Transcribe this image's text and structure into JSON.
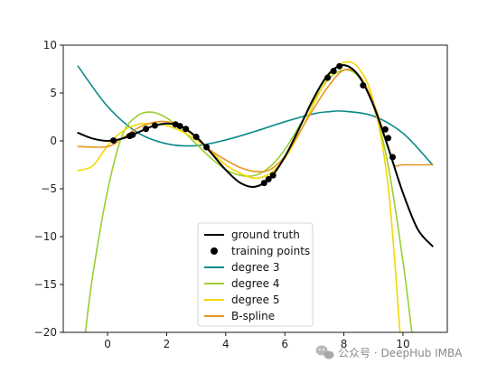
{
  "chart_data": {
    "type": "line",
    "title": "",
    "xlabel": "",
    "ylabel": "",
    "xlim": [
      -1.5,
      11.5
    ],
    "ylim": [
      -20,
      10
    ],
    "xticks": [
      0,
      2,
      4,
      6,
      8,
      10
    ],
    "yticks": [
      -20,
      -15,
      -10,
      -5,
      0,
      5,
      10
    ],
    "grid": false,
    "legend_position": "bottom-center",
    "series": [
      {
        "name": "ground truth",
        "color": "#000000",
        "kind": "line",
        "x": [
          -1.0,
          -0.5,
          0.0,
          0.5,
          1.0,
          1.5,
          2.0,
          2.5,
          3.0,
          3.5,
          4.0,
          4.5,
          5.0,
          5.5,
          6.0,
          6.5,
          7.0,
          7.5,
          8.0,
          8.5,
          9.0,
          9.5,
          10.0,
          10.5,
          11.0
        ],
        "y": [
          0.84,
          0.24,
          0.0,
          0.24,
          0.84,
          1.5,
          1.82,
          1.5,
          0.42,
          -1.23,
          -3.03,
          -4.4,
          -4.79,
          -3.88,
          -1.68,
          1.4,
          4.6,
          7.04,
          7.91,
          6.8,
          3.71,
          -0.72,
          -5.44,
          -9.24,
          -11.0
        ]
      },
      {
        "name": "training points",
        "color": "#000000",
        "kind": "points",
        "x": [
          0.2,
          0.75,
          0.85,
          1.3,
          1.6,
          2.3,
          2.45,
          2.65,
          3.0,
          3.35,
          5.3,
          5.45,
          5.6,
          7.45,
          7.65,
          7.85,
          8.65,
          9.4,
          9.5,
          9.65
        ],
        "y": [
          0.04,
          0.51,
          0.64,
          1.25,
          1.6,
          1.72,
          1.55,
          1.25,
          0.42,
          -0.66,
          -4.4,
          -4.0,
          -3.6,
          6.6,
          7.3,
          7.8,
          5.8,
          1.2,
          0.3,
          -1.7
        ]
      },
      {
        "name": "degree 3",
        "color": "#0a8a8a",
        "kind": "line",
        "x": [
          -1.0,
          0.0,
          1.0,
          2.0,
          3.0,
          4.0,
          5.0,
          6.0,
          7.0,
          7.5,
          8.0,
          9.0,
          10.0,
          11.0
        ],
        "y": [
          7.8,
          3.6,
          0.9,
          -0.3,
          -0.5,
          0.1,
          1.0,
          2.0,
          2.85,
          3.05,
          3.1,
          2.6,
          0.8,
          -2.5
        ]
      },
      {
        "name": "degree 4",
        "color": "#9acd32",
        "kind": "line",
        "x": [
          -0.75,
          -0.5,
          0.0,
          0.5,
          1.0,
          1.5,
          2.0,
          2.5,
          3.0,
          3.5,
          4.0,
          4.5,
          5.0,
          5.5,
          6.0,
          6.5,
          7.0,
          7.5,
          8.0,
          8.5,
          9.0,
          9.5,
          10.0,
          10.3
        ],
        "y": [
          -20,
          -14.0,
          -5.2,
          0.6,
          2.6,
          3.0,
          2.4,
          1.2,
          -0.3,
          -1.8,
          -3.0,
          -3.6,
          -3.6,
          -2.7,
          -0.9,
          1.6,
          4.3,
          6.5,
          7.4,
          6.7,
          3.6,
          -2.6,
          -12.6,
          -20
        ]
      },
      {
        "name": "degree 5",
        "color": "#f5d800",
        "kind": "line",
        "x": [
          -1.0,
          -0.5,
          0.0,
          0.5,
          1.0,
          1.5,
          2.0,
          2.5,
          3.0,
          3.5,
          4.0,
          4.5,
          5.0,
          5.5,
          6.0,
          6.5,
          7.0,
          7.5,
          8.0,
          8.5,
          9.0,
          9.5,
          9.9
        ],
        "y": [
          -3.1,
          -2.6,
          -0.5,
          1.0,
          1.7,
          1.8,
          1.6,
          1.0,
          0.1,
          -1.1,
          -2.5,
          -3.4,
          -3.9,
          -3.4,
          -1.8,
          0.8,
          4.0,
          6.8,
          8.2,
          7.6,
          4.1,
          -4.8,
          -20
        ]
      },
      {
        "name": "B-spline",
        "color": "#e8961e",
        "kind": "line",
        "x": [
          -1.0,
          0.0,
          0.5,
          1.0,
          1.5,
          2.0,
          2.5,
          3.0,
          3.5,
          4.0,
          4.5,
          5.0,
          5.5,
          6.0,
          6.5,
          7.0,
          7.5,
          8.0,
          8.5,
          9.0,
          9.5,
          9.7,
          10.0,
          11.0
        ],
        "y": [
          -0.6,
          -0.6,
          0.3,
          1.3,
          1.9,
          2.0,
          1.5,
          0.3,
          -1.0,
          -2.0,
          -2.8,
          -3.2,
          -3.0,
          -1.6,
          0.9,
          3.5,
          5.8,
          7.4,
          6.9,
          4.0,
          -0.6,
          -2.5,
          -2.5,
          -2.5
        ]
      }
    ]
  },
  "watermark": {
    "icon": "wechat-icon",
    "text": "公众号 · DeepHub IMBA"
  }
}
